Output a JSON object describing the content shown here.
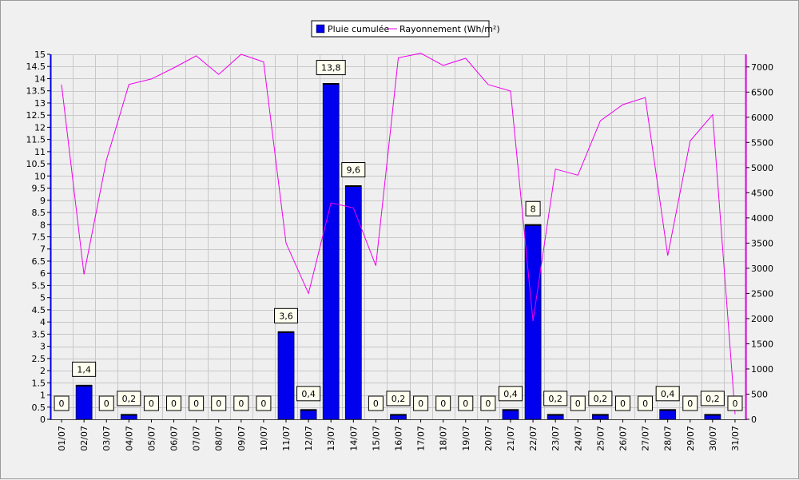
{
  "chart_data": {
    "type": "bar",
    "title": "",
    "xlabel": "",
    "categories": [
      "01/07",
      "02/07",
      "03/07",
      "04/07",
      "05/07",
      "06/07",
      "07/07",
      "08/07",
      "09/07",
      "10/07",
      "11/07",
      "12/07",
      "13/07",
      "14/07",
      "15/07",
      "16/07",
      "17/07",
      "18/07",
      "19/07",
      "20/07",
      "21/07",
      "22/07",
      "23/07",
      "24/07",
      "25/07",
      "26/07",
      "27/07",
      "28/07",
      "29/07",
      "30/07",
      "31/07"
    ],
    "series": [
      {
        "name": "Pluie cumulée",
        "type": "bar",
        "axis": "left",
        "color": "#0000ee",
        "values": [
          0,
          1.4,
          0,
          0.2,
          0,
          0,
          0,
          0,
          0,
          0,
          3.6,
          0.4,
          13.8,
          9.6,
          0,
          0.2,
          0,
          0,
          0,
          0,
          0.4,
          8,
          0.2,
          0,
          0.2,
          0,
          0,
          0.4,
          0,
          0.2,
          0
        ],
        "data_labels": [
          "0",
          "1,4",
          "0",
          "0,2",
          "0",
          "0",
          "0",
          "0",
          "0",
          "0",
          "3,6",
          "0,4",
          "13,8",
          "9,6",
          "0",
          "0,2",
          "0",
          "0",
          "0",
          "0",
          "0,4",
          "8",
          "0,2",
          "0",
          "0,2",
          "0",
          "0",
          "0,4",
          "0",
          "0,2",
          "0"
        ]
      },
      {
        "name": "Rayonnement (Wh/m²)",
        "type": "line",
        "axis": "right",
        "color": "#ee00ee",
        "values": [
          6650,
          2880,
          5150,
          6650,
          6760,
          6980,
          7220,
          6850,
          7250,
          7100,
          3500,
          2500,
          4300,
          4200,
          3050,
          7180,
          7270,
          7030,
          7170,
          6650,
          6520,
          1950,
          4970,
          4850,
          5930,
          6250,
          6390,
          3250,
          5530,
          6050,
          100
        ]
      }
    ],
    "ylim_left": [
      0,
      15
    ],
    "yticks_left": [
      "0",
      "0.5",
      "1",
      "1.5",
      "2",
      "2.5",
      "3",
      "3.5",
      "4",
      "4.5",
      "5",
      "5.5",
      "6",
      "6.5",
      "7",
      "7.5",
      "8",
      "8.5",
      "9",
      "9.5",
      "10",
      "10.5",
      "11",
      "11.5",
      "12",
      "12.5",
      "13",
      "13.5",
      "14",
      "14.5",
      "15"
    ],
    "ylim_right": [
      0,
      7250
    ],
    "yticks_right": [
      "0",
      "500",
      "1000",
      "1500",
      "2000",
      "2500",
      "3000",
      "3500",
      "4000",
      "4500",
      "5000",
      "5500",
      "6000",
      "6500",
      "7000"
    ],
    "grid": true,
    "legend_position": "top-center"
  }
}
